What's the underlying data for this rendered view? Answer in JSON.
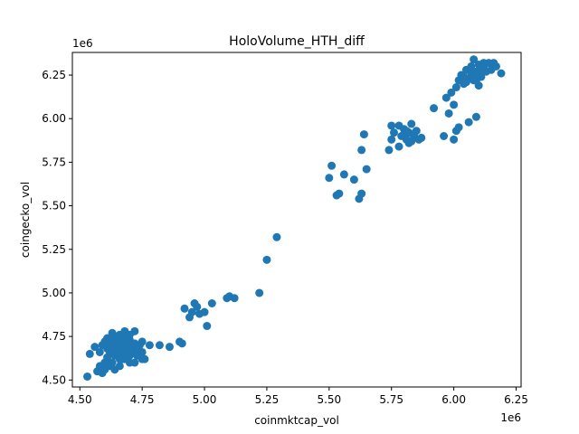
{
  "chart_data": {
    "type": "scatter",
    "title": "HoloVolume_HTH_diff",
    "xlabel": "coinmktcap_vol",
    "ylabel": "coingecko_vol",
    "x_offset_text": "1e6",
    "y_offset_text": "1e6",
    "xlim": [
      4.47,
      6.27
    ],
    "ylim": [
      4.46,
      6.38
    ],
    "x_ticks": [
      "4.50",
      "4.75",
      "5.00",
      "5.25",
      "5.50",
      "5.75",
      "6.00",
      "6.25"
    ],
    "y_ticks": [
      "4.50",
      "4.75",
      "5.00",
      "5.25",
      "5.50",
      "5.75",
      "6.00",
      "6.25"
    ],
    "grid": false,
    "marker_color": "#1f77b4",
    "series": [
      {
        "points": [
          [
            4.53,
            4.52
          ],
          [
            4.54,
            4.65
          ],
          [
            4.56,
            4.69
          ],
          [
            4.57,
            4.55
          ],
          [
            4.58,
            4.58
          ],
          [
            4.59,
            4.54
          ],
          [
            4.6,
            4.56
          ],
          [
            4.6,
            4.6
          ],
          [
            4.61,
            4.63
          ],
          [
            4.61,
            4.68
          ],
          [
            4.62,
            4.72
          ],
          [
            4.62,
            4.66
          ],
          [
            4.63,
            4.6
          ],
          [
            4.63,
            4.7
          ],
          [
            4.64,
            4.74
          ],
          [
            4.64,
            4.64
          ],
          [
            4.65,
            4.68
          ],
          [
            4.65,
            4.72
          ],
          [
            4.66,
            4.76
          ],
          [
            4.66,
            4.62
          ],
          [
            4.67,
            4.66
          ],
          [
            4.67,
            4.7
          ],
          [
            4.68,
            4.74
          ],
          [
            4.68,
            4.78
          ],
          [
            4.69,
            4.65
          ],
          [
            4.69,
            4.69
          ],
          [
            4.7,
            4.73
          ],
          [
            4.7,
            4.6
          ],
          [
            4.71,
            4.67
          ],
          [
            4.72,
            4.71
          ],
          [
            4.72,
            4.78
          ],
          [
            4.73,
            4.64
          ],
          [
            4.74,
            4.7
          ],
          [
            4.75,
            4.66
          ],
          [
            4.75,
            4.72
          ],
          [
            4.76,
            4.62
          ],
          [
            4.78,
            4.7
          ],
          [
            4.6,
            4.72
          ],
          [
            4.62,
            4.58
          ],
          [
            4.64,
            4.56
          ],
          [
            4.66,
            4.58
          ],
          [
            4.68,
            4.62
          ],
          [
            4.7,
            4.76
          ],
          [
            4.63,
            4.77
          ],
          [
            4.65,
            4.75
          ],
          [
            4.67,
            4.73
          ],
          [
            4.69,
            4.71
          ],
          [
            4.71,
            4.7
          ],
          [
            4.58,
            4.66
          ],
          [
            4.59,
            4.7
          ],
          [
            4.61,
            4.74
          ],
          [
            4.64,
            4.68
          ],
          [
            4.66,
            4.64
          ],
          [
            4.68,
            4.66
          ],
          [
            4.7,
            4.64
          ],
          [
            4.73,
            4.68
          ],
          [
            4.75,
            4.62
          ],
          [
            4.72,
            4.6
          ],
          [
            4.62,
            4.7
          ],
          [
            4.65,
            4.66
          ],
          [
            4.67,
            4.62
          ],
          [
            4.68,
            4.7
          ],
          [
            4.7,
            4.68
          ],
          [
            4.82,
            4.7
          ],
          [
            4.86,
            4.69
          ],
          [
            4.9,
            4.72
          ],
          [
            4.91,
            4.71
          ],
          [
            4.92,
            4.91
          ],
          [
            4.94,
            4.86
          ],
          [
            4.95,
            4.89
          ],
          [
            4.96,
            4.94
          ],
          [
            4.97,
            4.92
          ],
          [
            4.98,
            4.88
          ],
          [
            5.0,
            4.89
          ],
          [
            5.01,
            4.81
          ],
          [
            5.03,
            4.94
          ],
          [
            5.09,
            4.97
          ],
          [
            5.1,
            4.98
          ],
          [
            5.12,
            4.97
          ],
          [
            5.22,
            5.0
          ],
          [
            5.25,
            5.19
          ],
          [
            5.29,
            5.32
          ],
          [
            5.5,
            5.66
          ],
          [
            5.51,
            5.73
          ],
          [
            5.53,
            5.56
          ],
          [
            5.54,
            5.57
          ],
          [
            5.56,
            5.68
          ],
          [
            5.6,
            5.65
          ],
          [
            5.62,
            5.54
          ],
          [
            5.63,
            5.57
          ],
          [
            5.63,
            5.82
          ],
          [
            5.64,
            5.91
          ],
          [
            5.65,
            5.71
          ],
          [
            5.74,
            5.82
          ],
          [
            5.75,
            5.88
          ],
          [
            5.75,
            5.96
          ],
          [
            5.76,
            5.92
          ],
          [
            5.78,
            5.96
          ],
          [
            5.78,
            5.84
          ],
          [
            5.79,
            5.9
          ],
          [
            5.8,
            5.94
          ],
          [
            5.81,
            5.88
          ],
          [
            5.82,
            5.92
          ],
          [
            5.82,
            5.86
          ],
          [
            5.83,
            5.97
          ],
          [
            5.84,
            5.9
          ],
          [
            5.85,
            5.93
          ],
          [
            5.86,
            5.88
          ],
          [
            5.87,
            5.89
          ],
          [
            5.8,
            5.91
          ],
          [
            5.81,
            5.93
          ],
          [
            5.83,
            5.87
          ],
          [
            5.84,
            5.91
          ],
          [
            5.92,
            6.06
          ],
          [
            5.96,
            5.9
          ],
          [
            5.97,
            6.12
          ],
          [
            5.98,
            6.03
          ],
          [
            5.99,
            6.15
          ],
          [
            6.0,
            5.88
          ],
          [
            6.0,
            6.08
          ],
          [
            6.01,
            5.93
          ],
          [
            6.01,
            6.18
          ],
          [
            6.02,
            6.22
          ],
          [
            6.02,
            5.95
          ],
          [
            6.03,
            6.25
          ],
          [
            6.04,
            6.2
          ],
          [
            6.05,
            6.28
          ],
          [
            6.06,
            6.23
          ],
          [
            6.06,
            5.98
          ],
          [
            6.07,
            6.3
          ],
          [
            6.07,
            6.26
          ],
          [
            6.08,
            6.34
          ],
          [
            6.08,
            6.22
          ],
          [
            6.09,
            6.27
          ],
          [
            6.09,
            6.01
          ],
          [
            6.1,
            6.31
          ],
          [
            6.1,
            6.19
          ],
          [
            6.11,
            6.24
          ],
          [
            6.11,
            6.29
          ],
          [
            6.12,
            6.32
          ],
          [
            6.13,
            6.27
          ],
          [
            6.14,
            6.32
          ],
          [
            6.15,
            6.28
          ],
          [
            6.16,
            6.32
          ],
          [
            6.17,
            6.3
          ],
          [
            6.19,
            6.26
          ],
          [
            6.04,
            6.24
          ],
          [
            6.05,
            6.21
          ],
          [
            6.08,
            6.25
          ],
          [
            6.09,
            6.22
          ],
          [
            6.1,
            6.26
          ],
          [
            6.12,
            6.29
          ]
        ]
      }
    ]
  }
}
